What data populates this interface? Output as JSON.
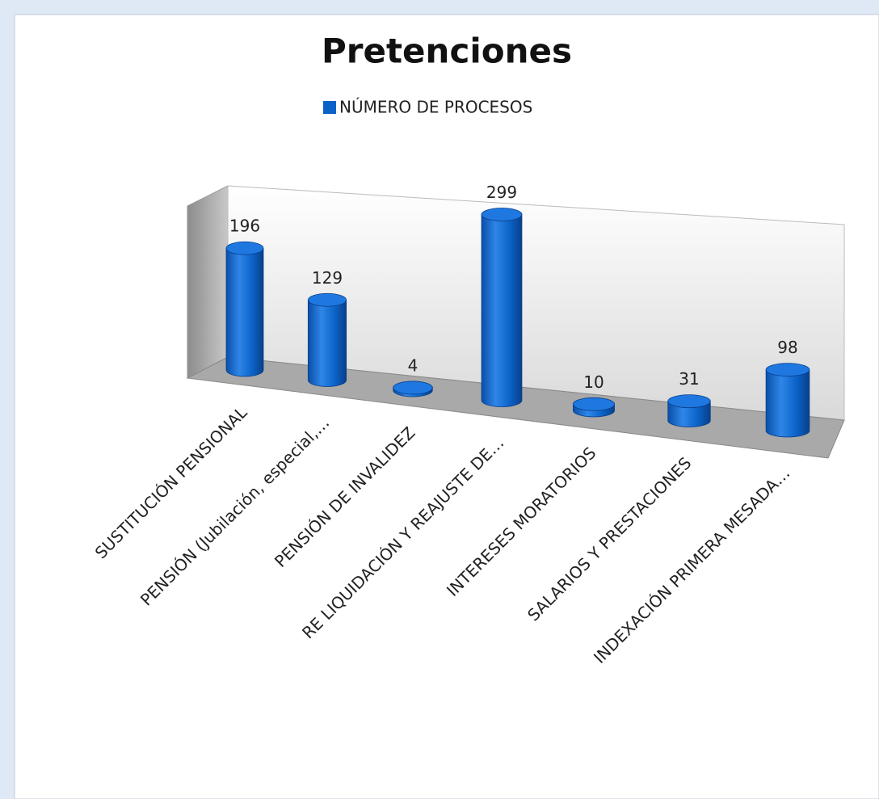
{
  "chart_data": {
    "type": "bar3d",
    "title": "Pretenciones",
    "categories": [
      "SUSTITUCIÓN PENSIONAL",
      "PENSIÓN (Jubilación, especial,…",
      "PENSIÓN DE INVALIDEZ",
      "RE LIQUIDACIÓN Y REAJUSTE DE…",
      "INTERESES MORATORIOS",
      "SALARIOS Y PRESTACIONES",
      "INDEXACIÓN PRIMERA MESADA…"
    ],
    "series": [
      {
        "name": "NÚMERO DE PROCESOS",
        "color": "#0b63c8",
        "values": [
          196,
          129,
          4,
          299,
          10,
          31,
          98
        ]
      }
    ],
    "legend": "top"
  }
}
